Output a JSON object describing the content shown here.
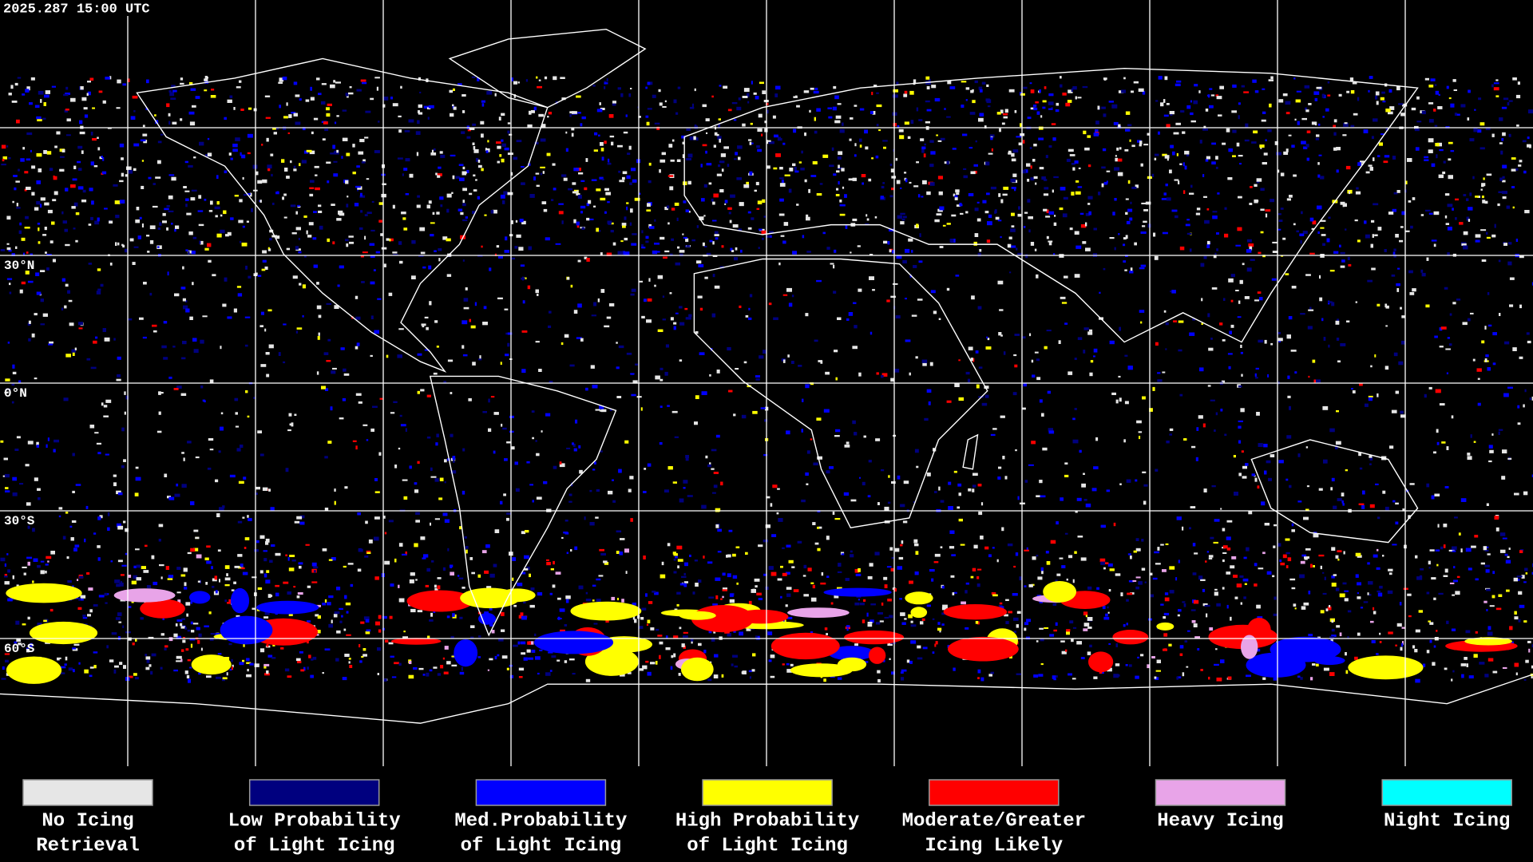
{
  "header": {
    "timestamp": "2025.287 15:00 UTC"
  },
  "map": {
    "latitude_labels": [
      "30°N",
      "0°N",
      "30°S",
      "60°S"
    ]
  },
  "legend": {
    "items": [
      {
        "lines": [
          "No Icing",
          "Retrieval"
        ],
        "color": "#e6e6e6"
      },
      {
        "lines": [
          "Low Probability",
          "of Light Icing"
        ],
        "color": "#00007f"
      },
      {
        "lines": [
          "Med.Probability",
          "of Light Icing"
        ],
        "color": "#0000ff"
      },
      {
        "lines": [
          "High Probability",
          "of Light Icing"
        ],
        "color": "#ffff00"
      },
      {
        "lines": [
          "Moderate/Greater",
          "Icing Likely"
        ],
        "color": "#ff0000"
      },
      {
        "lines": [
          "Heavy Icing"
        ],
        "color": "#e8a4e8"
      },
      {
        "lines": [
          "Night Icing"
        ],
        "color": "#00ffff"
      }
    ]
  }
}
